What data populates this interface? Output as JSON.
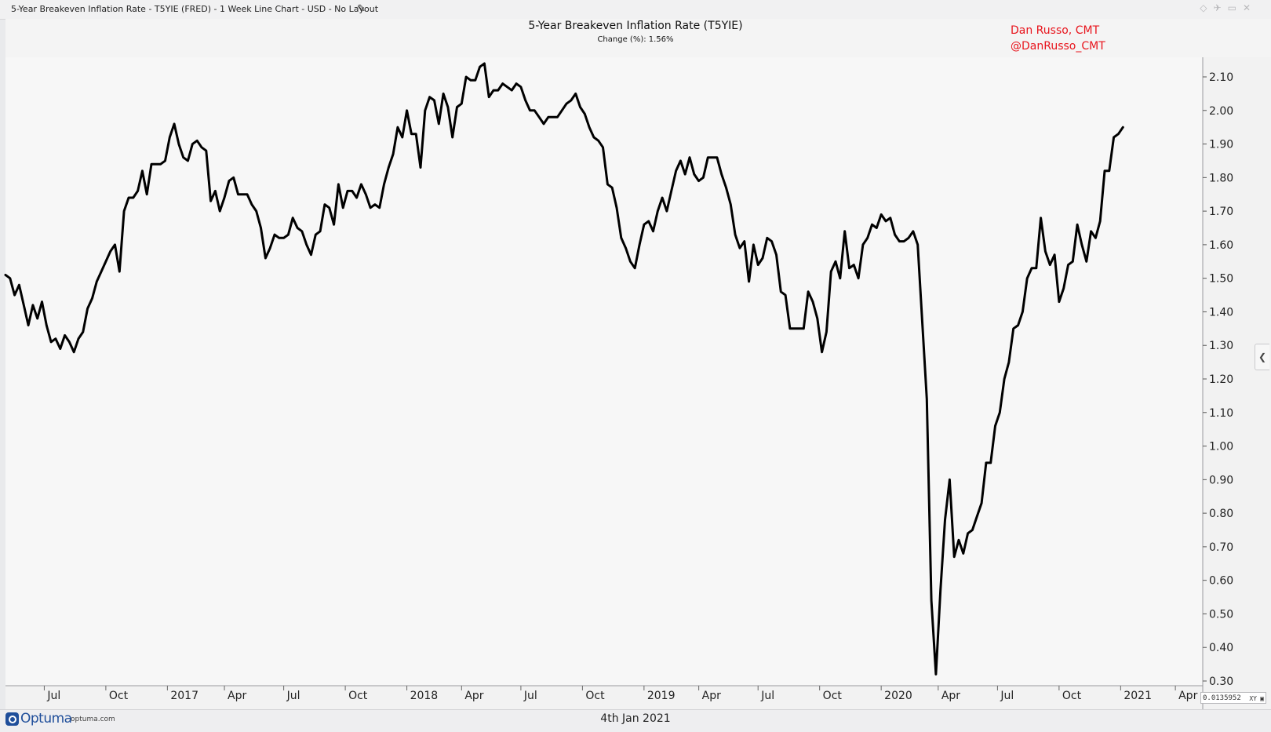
{
  "window": {
    "title": "5-Year Breakeven Inflation Rate - T5YIE (FRED) - 1 Week Line Chart - USD - No Layout",
    "edit_icon": "pencil-icon",
    "buttons": [
      "diamond-icon",
      "pin-icon",
      "restore-icon",
      "close-icon"
    ]
  },
  "header": {
    "title": "5-Year Breakeven Inflation Rate (T5YIE)",
    "subtitle": "Change (%): 1.56%",
    "author_name": "Dan Russo, CMT",
    "author_handle": "@DanRusso_CMT",
    "author_color": "#e8141c"
  },
  "footer": {
    "logo_text": "Optuma",
    "logo_site": "optuma.com",
    "date": "4th Jan 2021",
    "brand_color": "#1f4e9a"
  },
  "crosshair_readout": {
    "value": "0.0135952",
    "mode_label": "XY"
  },
  "chart_data": {
    "type": "line",
    "series": [
      {
        "values": [
          [
            0,
            1.51
          ],
          [
            2,
            1.5
          ],
          [
            4,
            1.45
          ],
          [
            6,
            1.48
          ],
          [
            8,
            1.42
          ],
          [
            10,
            1.36
          ],
          [
            12,
            1.42
          ],
          [
            14,
            1.38
          ],
          [
            16,
            1.43
          ],
          [
            18,
            1.36
          ],
          [
            20,
            1.31
          ],
          [
            22,
            1.32
          ],
          [
            24,
            1.29
          ],
          [
            26,
            1.33
          ],
          [
            28,
            1.31
          ],
          [
            30,
            1.28
          ],
          [
            32,
            1.32
          ],
          [
            34,
            1.34
          ],
          [
            36,
            1.41
          ],
          [
            38,
            1.44
          ],
          [
            40,
            1.49
          ],
          [
            42,
            1.52
          ],
          [
            44,
            1.55
          ],
          [
            46,
            1.58
          ],
          [
            48,
            1.6
          ],
          [
            50,
            1.52
          ],
          [
            52,
            1.7
          ],
          [
            54,
            1.74
          ],
          [
            56,
            1.74
          ],
          [
            58,
            1.76
          ],
          [
            60,
            1.82
          ],
          [
            62,
            1.75
          ],
          [
            64,
            1.84
          ],
          [
            66,
            1.84
          ],
          [
            68,
            1.84
          ],
          [
            70,
            1.85
          ],
          [
            72,
            1.92
          ],
          [
            74,
            1.96
          ],
          [
            76,
            1.9
          ],
          [
            78,
            1.86
          ],
          [
            80,
            1.85
          ],
          [
            82,
            1.9
          ],
          [
            84,
            1.91
          ],
          [
            86,
            1.89
          ],
          [
            88,
            1.88
          ],
          [
            90,
            1.73
          ],
          [
            92,
            1.76
          ],
          [
            94,
            1.7
          ],
          [
            96,
            1.74
          ],
          [
            98,
            1.79
          ],
          [
            100,
            1.8
          ],
          [
            102,
            1.75
          ],
          [
            104,
            1.75
          ],
          [
            106,
            1.75
          ],
          [
            108,
            1.72
          ],
          [
            110,
            1.7
          ],
          [
            112,
            1.65
          ],
          [
            114,
            1.56
          ],
          [
            116,
            1.59
          ],
          [
            118,
            1.63
          ],
          [
            120,
            1.62
          ],
          [
            122,
            1.62
          ],
          [
            124,
            1.63
          ],
          [
            126,
            1.68
          ],
          [
            128,
            1.65
          ],
          [
            130,
            1.64
          ],
          [
            132,
            1.6
          ],
          [
            134,
            1.57
          ],
          [
            136,
            1.63
          ],
          [
            138,
            1.64
          ],
          [
            140,
            1.72
          ],
          [
            142,
            1.71
          ],
          [
            144,
            1.66
          ],
          [
            146,
            1.78
          ],
          [
            148,
            1.71
          ],
          [
            150,
            1.76
          ],
          [
            152,
            1.76
          ],
          [
            154,
            1.74
          ],
          [
            156,
            1.78
          ],
          [
            158,
            1.75
          ],
          [
            160,
            1.71
          ],
          [
            162,
            1.72
          ],
          [
            164,
            1.71
          ],
          [
            166,
            1.78
          ],
          [
            168,
            1.83
          ],
          [
            170,
            1.87
          ],
          [
            172,
            1.95
          ],
          [
            174,
            1.92
          ],
          [
            176,
            2.0
          ],
          [
            178,
            1.93
          ],
          [
            180,
            1.93
          ],
          [
            182,
            1.83
          ],
          [
            184,
            2.0
          ],
          [
            186,
            2.04
          ],
          [
            188,
            2.03
          ],
          [
            190,
            1.96
          ],
          [
            192,
            2.05
          ],
          [
            194,
            2.01
          ],
          [
            196,
            1.92
          ],
          [
            198,
            2.01
          ],
          [
            200,
            2.02
          ],
          [
            202,
            2.1
          ],
          [
            204,
            2.09
          ],
          [
            206,
            2.09
          ],
          [
            208,
            2.13
          ],
          [
            210,
            2.14
          ],
          [
            212,
            2.04
          ],
          [
            214,
            2.06
          ],
          [
            216,
            2.06
          ],
          [
            218,
            2.08
          ],
          [
            220,
            2.07
          ],
          [
            222,
            2.06
          ],
          [
            224,
            2.08
          ],
          [
            226,
            2.07
          ],
          [
            228,
            2.03
          ],
          [
            230,
            2.0
          ],
          [
            232,
            2.0
          ],
          [
            234,
            1.98
          ],
          [
            236,
            1.96
          ],
          [
            238,
            1.98
          ],
          [
            240,
            1.98
          ],
          [
            242,
            1.98
          ],
          [
            244,
            2.0
          ],
          [
            246,
            2.02
          ],
          [
            248,
            2.03
          ],
          [
            250,
            2.05
          ],
          [
            252,
            2.01
          ],
          [
            254,
            1.99
          ],
          [
            256,
            1.95
          ],
          [
            258,
            1.92
          ],
          [
            260,
            1.91
          ],
          [
            262,
            1.89
          ],
          [
            264,
            1.78
          ],
          [
            266,
            1.77
          ],
          [
            268,
            1.71
          ],
          [
            270,
            1.62
          ],
          [
            272,
            1.59
          ],
          [
            274,
            1.55
          ],
          [
            276,
            1.53
          ],
          [
            278,
            1.6
          ],
          [
            280,
            1.66
          ],
          [
            282,
            1.67
          ],
          [
            284,
            1.64
          ],
          [
            286,
            1.7
          ],
          [
            288,
            1.74
          ],
          [
            290,
            1.7
          ],
          [
            292,
            1.76
          ],
          [
            294,
            1.82
          ],
          [
            296,
            1.85
          ],
          [
            298,
            1.81
          ],
          [
            300,
            1.86
          ],
          [
            302,
            1.81
          ],
          [
            304,
            1.79
          ],
          [
            306,
            1.8
          ],
          [
            308,
            1.86
          ],
          [
            310,
            1.86
          ],
          [
            312,
            1.86
          ],
          [
            314,
            1.81
          ],
          [
            316,
            1.77
          ],
          [
            318,
            1.72
          ],
          [
            320,
            1.63
          ],
          [
            322,
            1.59
          ],
          [
            324,
            1.61
          ],
          [
            326,
            1.49
          ],
          [
            328,
            1.6
          ],
          [
            330,
            1.54
          ],
          [
            332,
            1.56
          ],
          [
            334,
            1.62
          ],
          [
            336,
            1.61
          ],
          [
            338,
            1.57
          ],
          [
            340,
            1.46
          ],
          [
            342,
            1.45
          ],
          [
            344,
            1.35
          ],
          [
            346,
            1.35
          ],
          [
            348,
            1.35
          ],
          [
            350,
            1.35
          ],
          [
            352,
            1.46
          ],
          [
            354,
            1.43
          ],
          [
            356,
            1.38
          ],
          [
            358,
            1.28
          ],
          [
            360,
            1.34
          ],
          [
            362,
            1.52
          ],
          [
            364,
            1.55
          ],
          [
            366,
            1.5
          ],
          [
            368,
            1.64
          ],
          [
            370,
            1.53
          ],
          [
            372,
            1.54
          ],
          [
            374,
            1.5
          ],
          [
            376,
            1.6
          ],
          [
            378,
            1.62
          ],
          [
            380,
            1.66
          ],
          [
            382,
            1.65
          ],
          [
            384,
            1.69
          ],
          [
            386,
            1.67
          ],
          [
            388,
            1.68
          ],
          [
            390,
            1.63
          ],
          [
            392,
            1.61
          ],
          [
            394,
            1.61
          ],
          [
            396,
            1.62
          ],
          [
            398,
            1.64
          ],
          [
            400,
            1.6
          ],
          [
            402,
            1.37
          ],
          [
            404,
            1.14
          ],
          [
            406,
            0.54
          ],
          [
            408,
            0.32
          ],
          [
            410,
            0.57
          ],
          [
            412,
            0.78
          ],
          [
            414,
            0.9
          ],
          [
            416,
            0.67
          ],
          [
            418,
            0.72
          ],
          [
            420,
            0.68
          ],
          [
            422,
            0.74
          ],
          [
            424,
            0.75
          ],
          [
            426,
            0.79
          ],
          [
            428,
            0.83
          ],
          [
            430,
            0.95
          ],
          [
            432,
            0.95
          ],
          [
            434,
            1.06
          ],
          [
            436,
            1.1
          ],
          [
            438,
            1.2
          ],
          [
            440,
            1.25
          ],
          [
            442,
            1.35
          ],
          [
            444,
            1.36
          ],
          [
            446,
            1.4
          ],
          [
            448,
            1.5
          ],
          [
            450,
            1.53
          ],
          [
            452,
            1.53
          ],
          [
            454,
            1.68
          ],
          [
            456,
            1.58
          ],
          [
            458,
            1.54
          ],
          [
            460,
            1.57
          ],
          [
            462,
            1.43
          ],
          [
            464,
            1.47
          ],
          [
            466,
            1.54
          ],
          [
            468,
            1.55
          ],
          [
            470,
            1.66
          ],
          [
            472,
            1.6
          ],
          [
            474,
            1.55
          ],
          [
            476,
            1.64
          ],
          [
            478,
            1.62
          ],
          [
            480,
            1.67
          ],
          [
            482,
            1.82
          ],
          [
            484,
            1.82
          ],
          [
            486,
            1.92
          ],
          [
            488,
            1.93
          ],
          [
            490,
            1.95
          ]
        ]
      }
    ],
    "x_ticks": [
      {
        "x": 17,
        "label": "Jul"
      },
      {
        "x": 44,
        "label": "Oct"
      },
      {
        "x": 71,
        "label": "2017"
      },
      {
        "x": 96,
        "label": "Apr"
      },
      {
        "x": 122,
        "label": "Jul"
      },
      {
        "x": 149,
        "label": "Oct"
      },
      {
        "x": 176,
        "label": "2018"
      },
      {
        "x": 200,
        "label": "Apr"
      },
      {
        "x": 226,
        "label": "Jul"
      },
      {
        "x": 253,
        "label": "Oct"
      },
      {
        "x": 280,
        "label": "2019"
      },
      {
        "x": 304,
        "label": "Apr"
      },
      {
        "x": 330,
        "label": "Jul"
      },
      {
        "x": 357,
        "label": "Oct"
      },
      {
        "x": 384,
        "label": "2020"
      },
      {
        "x": 409,
        "label": "Apr"
      },
      {
        "x": 435,
        "label": "Jul"
      },
      {
        "x": 462,
        "label": "Oct"
      },
      {
        "x": 489,
        "label": "2021"
      },
      {
        "x": 513,
        "label": "Apr"
      }
    ],
    "xlim": [
      0,
      525
    ],
    "ylim": [
      0.3,
      2.13
    ],
    "y_ticks": [
      "2.10",
      "2.00",
      "1.90",
      "1.80",
      "1.70",
      "1.60",
      "1.50",
      "1.40",
      "1.30",
      "1.20",
      "1.10",
      "1.00",
      "0.90",
      "0.80",
      "0.70",
      "0.60",
      "0.50",
      "0.40",
      "0.30"
    ],
    "grid": false,
    "line_color": "#000000"
  }
}
